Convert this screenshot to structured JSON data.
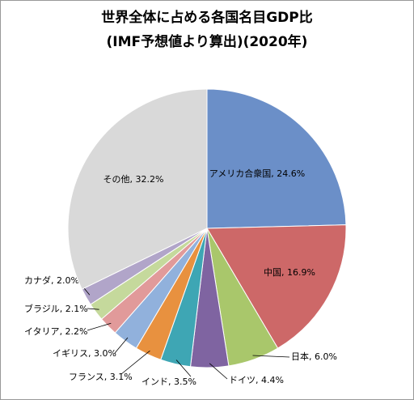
{
  "chart_data": {
    "type": "pie",
    "title": "世界全体に占める各国名目GDP比",
    "subtitle": "(IMF予想値より算出)(2020年)",
    "categories": [
      "アメリカ合衆国",
      "中国",
      "日本",
      "ドイツ",
      "インド",
      "フランス",
      "イギリス",
      "イタリア",
      "ブラジル",
      "カナダ",
      "その他"
    ],
    "values": [
      24.6,
      16.9,
      6.0,
      4.4,
      3.5,
      3.1,
      3.0,
      2.2,
      2.1,
      2.0,
      32.2
    ],
    "value_labels": [
      ", 24.6%",
      ", 16.9%",
      ", 6.0%",
      ", 4.4%",
      ", 3.5%",
      ", 3.1%",
      ", 3.0%",
      ", 2.2%",
      ", 2.1%",
      ", 2.0%",
      ", 32.2%"
    ],
    "colors": [
      "#6b8fc8",
      "#cd6868",
      "#a9c76b",
      "#7f64a1",
      "#3ea6b4",
      "#e8913f",
      "#91b1dc",
      "#e19a9a",
      "#c5d99c",
      "#b1a5c9",
      "#d9d9d9"
    ]
  }
}
